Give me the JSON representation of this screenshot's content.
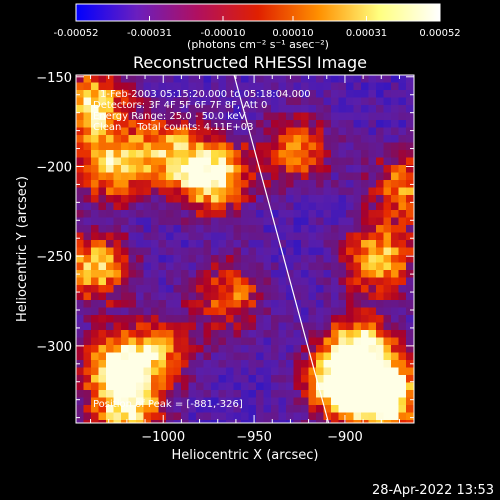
{
  "chart_data": {
    "type": "heatmap",
    "title": "Reconstructed RHESSI Image",
    "xlabel": "Heliocentric X (arcsec)",
    "ylabel": "Heliocentric Y (arcsec)",
    "xlim": [
      -1048,
      -862
    ],
    "ylim": [
      -343,
      -149
    ],
    "x_ticks": [
      -1000,
      -950,
      -900
    ],
    "x_tick_labels": [
      "−1000",
      "−950",
      "−900"
    ],
    "y_ticks": [
      -150,
      -200,
      -250,
      -300
    ],
    "y_tick_labels": [
      "−150",
      "−200",
      "−250",
      "−300"
    ],
    "colorbar": {
      "ticks": [
        "-0.00052",
        "-0.00031",
        "-0.00010",
        "0.00010",
        "0.00031",
        "0.00052"
      ],
      "units": "(photons cm⁻² s⁻¹ asec⁻²)",
      "range": [
        -0.00052,
        0.00052
      ],
      "colors": [
        "#0000ff",
        "#6a1fbf",
        "#b01060",
        "#e02000",
        "#ff9000",
        "#ffff80",
        "#ffffff"
      ]
    },
    "info": {
      "time": "1-Feb-2003 05:15:20.000 to 05:18:04.000",
      "detectors": "Detectors: 3F 4F 5F 6F 7F 8F, Att 0",
      "energy": "Energy Range: 25.0 - 50.0 keV",
      "clean": "Clean     Total counts: 4.11E+03",
      "peak": "Position of Peak = [-881,-326]"
    },
    "limb_line": {
      "x": [
        -961,
        -909
      ],
      "y": [
        -149,
        -343
      ]
    },
    "peak_position": [
      -881,
      -326
    ],
    "hot_regions": [
      {
        "x": -1040,
        "y": -165,
        "strength": 0.8
      },
      {
        "x": -1030,
        "y": -200,
        "strength": 0.7
      },
      {
        "x": -1038,
        "y": -255,
        "strength": 0.75
      },
      {
        "x": -1025,
        "y": -310,
        "strength": 0.85
      },
      {
        "x": -1020,
        "y": -335,
        "strength": 0.7
      },
      {
        "x": -975,
        "y": -205,
        "strength": 0.95
      },
      {
        "x": -1000,
        "y": -190,
        "strength": 0.6
      },
      {
        "x": -885,
        "y": -250,
        "strength": 0.75
      },
      {
        "x": -870,
        "y": -210,
        "strength": 0.6
      },
      {
        "x": -895,
        "y": -300,
        "strength": 0.8
      },
      {
        "x": -881,
        "y": -326,
        "strength": 1.0
      },
      {
        "x": -905,
        "y": -320,
        "strength": 0.9
      },
      {
        "x": -930,
        "y": -190,
        "strength": 0.6
      },
      {
        "x": -965,
        "y": -270,
        "strength": 0.55
      },
      {
        "x": -1000,
        "y": -300,
        "strength": 0.5
      }
    ]
  },
  "footer": {
    "timestamp": "28-Apr-2022 13:53"
  }
}
